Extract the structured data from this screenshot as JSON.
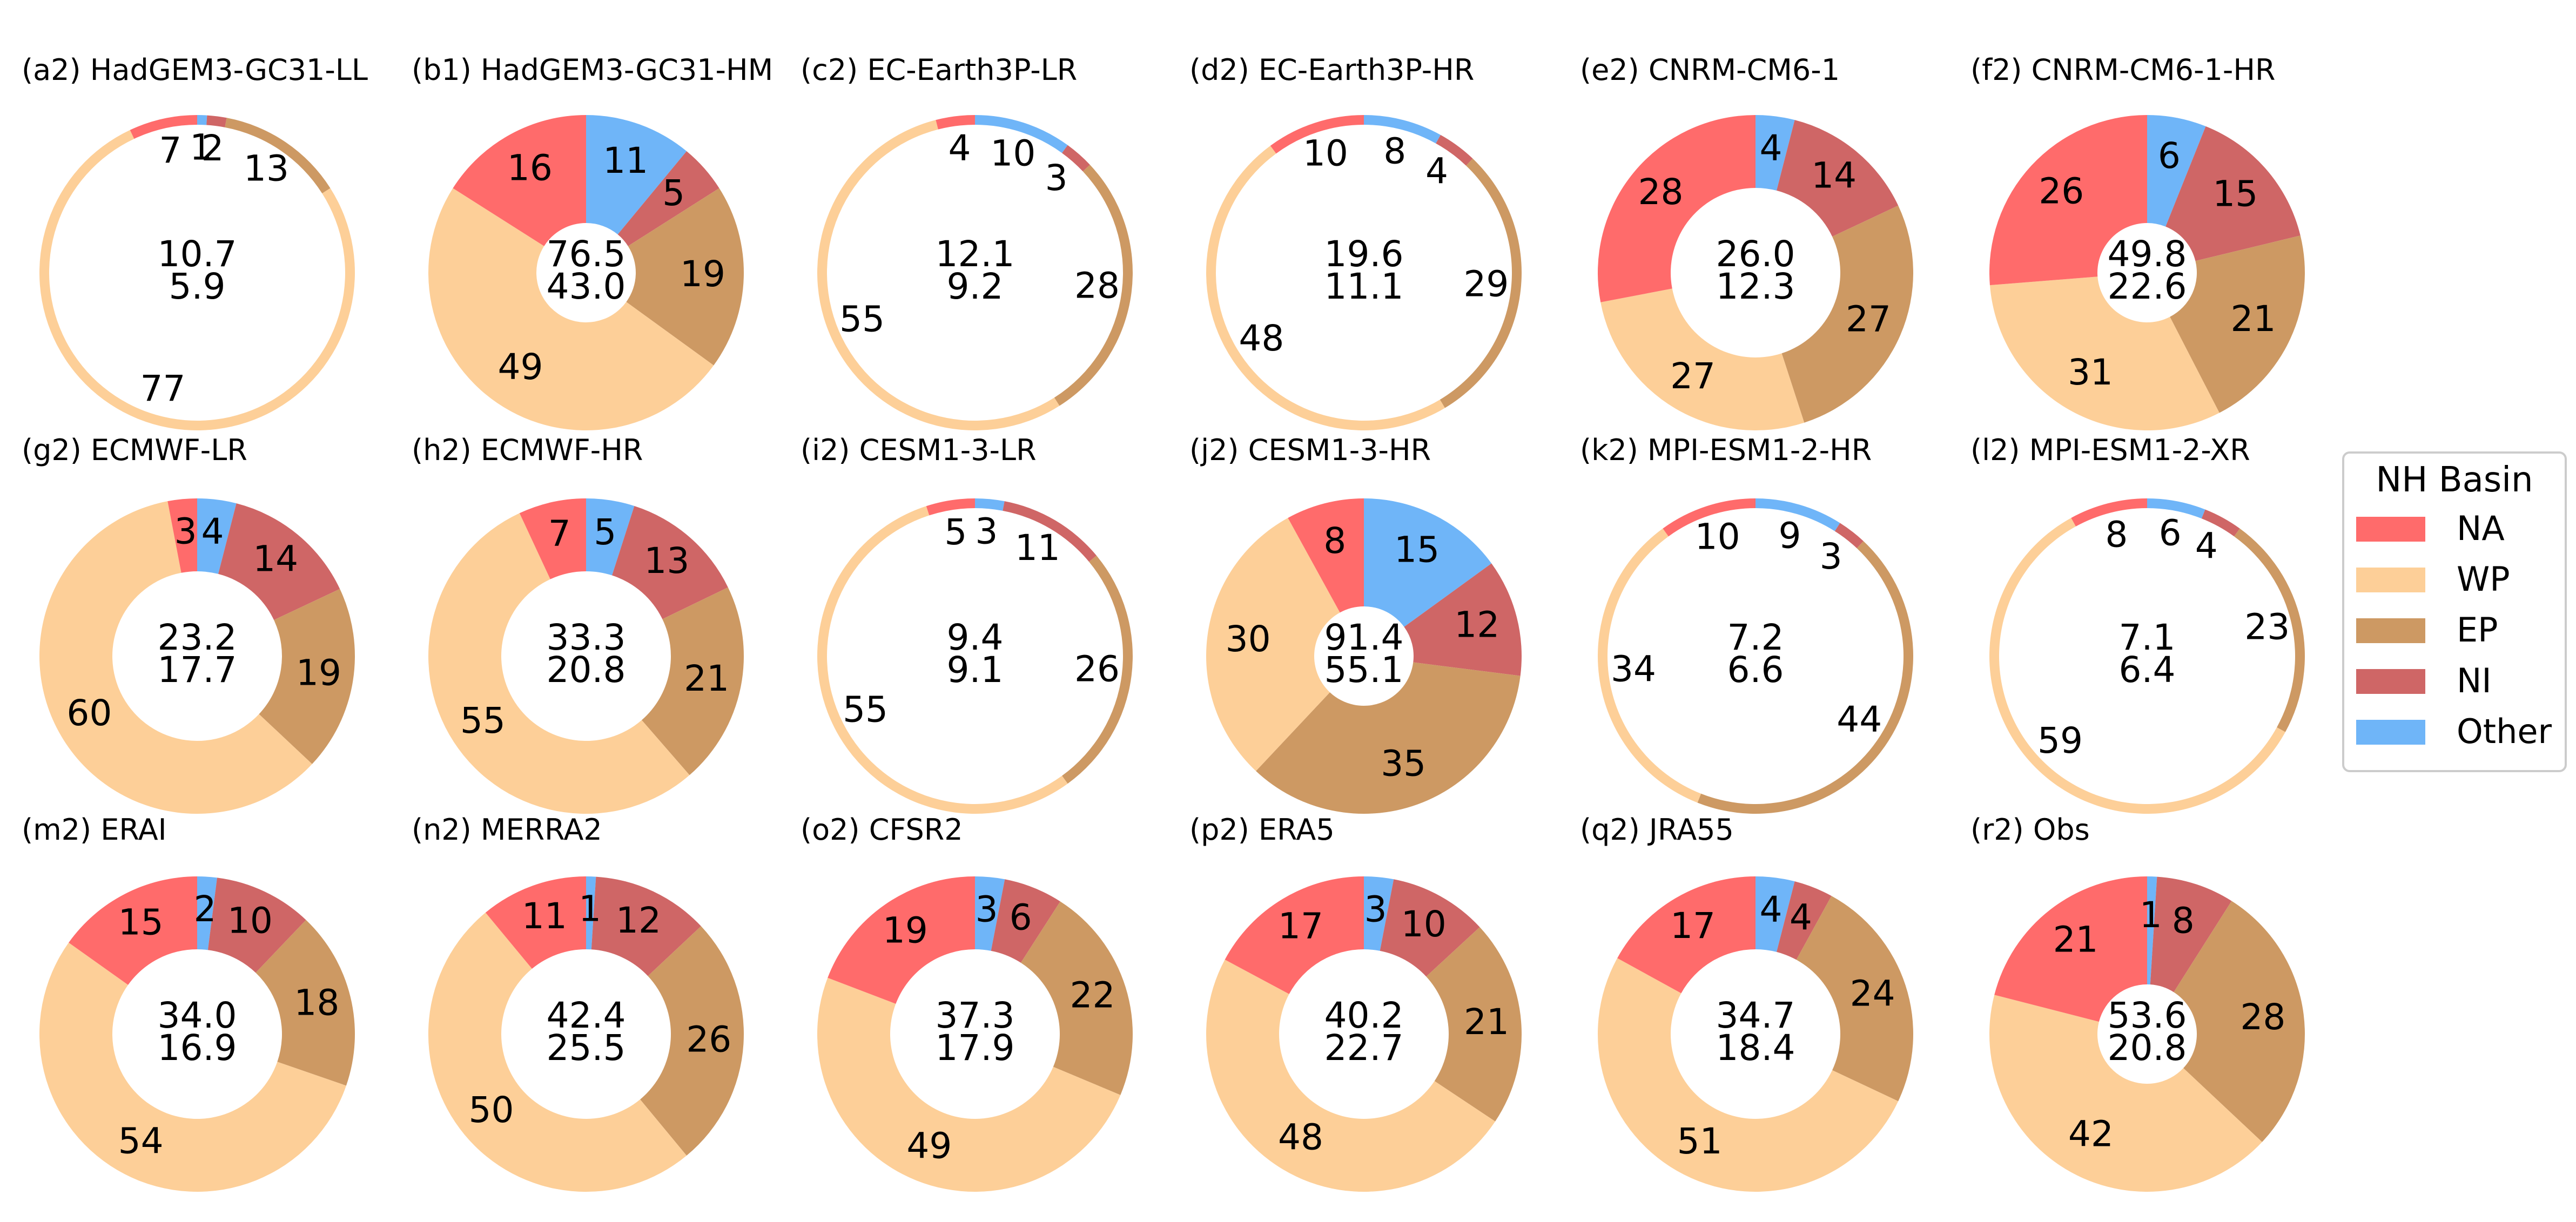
{
  "colors": {
    "NA": "#ff6b6b",
    "WP": "#fdcf98",
    "EP": "#cd9963",
    "NI": "#cf6666",
    "Other": "#6fb5f8"
  },
  "chart_data": {
    "type": "pie",
    "legend": {
      "title": "NH Basin",
      "entries": [
        "NA",
        "WP",
        "EP",
        "NI",
        "Other"
      ],
      "placement": "right"
    },
    "panels": [
      {
        "title": "(a2) HadGEM3-GC31-LL",
        "center_top": "10.7",
        "center_bottom": "5.9",
        "ring": "thin",
        "slices": {
          "Other": 1,
          "NI": 2,
          "EP": 13,
          "WP": 77,
          "NA": 7
        }
      },
      {
        "title": "(b1) HadGEM3-GC31-HM",
        "center_top": "76.5",
        "center_bottom": "43.0",
        "ring": "thick",
        "slices": {
          "Other": 11,
          "NI": 5,
          "EP": 19,
          "WP": 49,
          "NA": 16
        }
      },
      {
        "title": "(c2) EC-Earth3P-LR",
        "center_top": "12.1",
        "center_bottom": "9.2",
        "ring": "thin",
        "slices": {
          "Other": 10,
          "NI": 3,
          "EP": 28,
          "WP": 55,
          "NA": 4
        }
      },
      {
        "title": "(d2) EC-Earth3P-HR",
        "center_top": "19.6",
        "center_bottom": "11.1",
        "ring": "thin",
        "slices": {
          "Other": 8,
          "NI": 4,
          "EP": 29,
          "WP": 48,
          "NA": 10
        }
      },
      {
        "title": "(e2) CNRM-CM6-1",
        "center_top": "26.0",
        "center_bottom": "12.3",
        "ring": "medium",
        "slices": {
          "Other": 4,
          "NI": 14,
          "EP": 27,
          "WP": 27,
          "NA": 28
        }
      },
      {
        "title": "(f2) CNRM-CM6-1-HR",
        "center_top": "49.8",
        "center_bottom": "22.6",
        "ring": "thick",
        "slices": {
          "Other": 6,
          "NI": 15,
          "EP": 21,
          "WP": 31,
          "NA": 26
        }
      },
      {
        "title": "(g2) ECMWF-LR",
        "center_top": "23.2",
        "center_bottom": "17.7",
        "ring": "medium",
        "slices": {
          "Other": 4,
          "NI": 14,
          "EP": 19,
          "WP": 60,
          "NA": 3
        }
      },
      {
        "title": "(h2) ECMWF-HR",
        "center_top": "33.3",
        "center_bottom": "20.8",
        "ring": "medium",
        "slices": {
          "Other": 5,
          "NI": 13,
          "EP": 21,
          "WP": 55,
          "NA": 7
        }
      },
      {
        "title": "(i2) CESM1-3-LR",
        "center_top": "9.4",
        "center_bottom": "9.1",
        "ring": "thin",
        "slices": {
          "Other": 3,
          "NI": 11,
          "EP": 26,
          "WP": 55,
          "NA": 5
        }
      },
      {
        "title": "(j2) CESM1-3-HR",
        "center_top": "91.4",
        "center_bottom": "55.1",
        "ring": "thick",
        "slices": {
          "Other": 15,
          "NI": 12,
          "EP": 35,
          "WP": 30,
          "NA": 8
        }
      },
      {
        "title": "(k2) MPI-ESM1-2-HR",
        "center_top": "7.2",
        "center_bottom": "6.6",
        "ring": "thin",
        "slices": {
          "Other": 9,
          "NI": 3,
          "EP": 44,
          "WP": 34,
          "NA": 10
        }
      },
      {
        "title": "(l2) MPI-ESM1-2-XR",
        "center_top": "7.1",
        "center_bottom": "6.4",
        "ring": "thin",
        "slices": {
          "Other": 6,
          "NI": 4,
          "EP": 23,
          "WP": 59,
          "NA": 8
        }
      },
      {
        "title": "(m2) ERAI",
        "center_top": "34.0",
        "center_bottom": "16.9",
        "ring": "medium",
        "slices": {
          "Other": 2,
          "NI": 10,
          "EP": 18,
          "WP": 54,
          "NA": 15
        }
      },
      {
        "title": "(n2) MERRA2",
        "center_top": "42.4",
        "center_bottom": "25.5",
        "ring": "medium",
        "slices": {
          "Other": 1,
          "NI": 12,
          "EP": 26,
          "WP": 50,
          "NA": 11
        }
      },
      {
        "title": "(o2) CFSR2",
        "center_top": "37.3",
        "center_bottom": "17.9",
        "ring": "medium",
        "slices": {
          "Other": 3,
          "NI": 6,
          "EP": 22,
          "WP": 49,
          "NA": 19
        }
      },
      {
        "title": "(p2) ERA5",
        "center_top": "40.2",
        "center_bottom": "22.7",
        "ring": "medium",
        "slices": {
          "Other": 3,
          "NI": 10,
          "EP": 21,
          "WP": 48,
          "NA": 17
        }
      },
      {
        "title": "(q2) JRA55",
        "center_top": "34.7",
        "center_bottom": "18.4",
        "ring": "medium",
        "slices": {
          "Other": 4,
          "NI": 4,
          "EP": 24,
          "WP": 51,
          "NA": 17
        }
      },
      {
        "title": "(r2) Obs",
        "center_top": "53.6",
        "center_bottom": "20.8",
        "ring": "thick",
        "slices": {
          "Other": 1,
          "NI": 8,
          "EP": 28,
          "WP": 42,
          "NA": 21
        }
      }
    ]
  }
}
